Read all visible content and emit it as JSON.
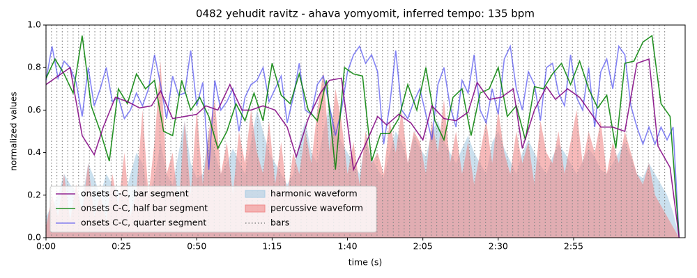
{
  "chart_data": {
    "type": "line",
    "title": "0482 yehudit ravitz - ahava yomyomit, inferred tempo: 135 bpm",
    "xlabel": "time (s)",
    "ylabel": "normalized values",
    "xlim": [
      0,
      212
    ],
    "ylim": [
      0,
      1
    ],
    "xticks": [
      {
        "value": 0,
        "label": "0:00"
      },
      {
        "value": 25,
        "label": "0:25"
      },
      {
        "value": 50,
        "label": "0:50"
      },
      {
        "value": 75,
        "label": "1:15"
      },
      {
        "value": 100,
        "label": "1:40"
      },
      {
        "value": 125,
        "label": "2:05"
      },
      {
        "value": 150,
        "label": "2:30"
      },
      {
        "value": 175,
        "label": "2:55"
      }
    ],
    "yticks": [
      {
        "value": 0,
        "label": "0.0"
      },
      0.2,
      0.4,
      0.6,
      0.8,
      {
        "value": 1,
        "label": "1.0"
      }
    ],
    "legend": "lower left",
    "x": [
      0,
      2,
      4,
      6,
      8,
      10,
      12,
      14,
      16,
      18,
      20,
      22,
      24,
      26,
      28,
      30,
      32,
      34,
      36,
      38,
      40,
      42,
      44,
      46,
      48,
      50,
      52,
      54,
      56,
      58,
      60,
      62,
      64,
      66,
      68,
      70,
      72,
      74,
      76,
      78,
      80,
      82,
      84,
      86,
      88,
      90,
      92,
      94,
      96,
      98,
      100,
      102,
      104,
      106,
      108,
      110,
      112,
      114,
      116,
      118,
      120,
      122,
      124,
      126,
      128,
      130,
      132,
      134,
      136,
      138,
      140,
      142,
      144,
      146,
      148,
      150,
      152,
      154,
      156,
      158,
      160,
      162,
      164,
      166,
      168,
      170,
      172,
      174,
      176,
      178,
      180,
      182,
      184,
      186,
      188,
      190,
      192,
      194,
      196,
      198,
      200,
      202,
      204,
      206,
      208,
      210
    ],
    "series": [
      {
        "name": "onsets C-C, bar segment",
        "type": "line",
        "color": "#800080",
        "x": [
          0,
          8,
          12,
          16,
          19,
          23,
          27,
          31,
          35,
          38,
          42,
          46,
          50,
          53,
          57,
          61,
          65,
          68,
          72,
          76,
          80,
          83,
          87,
          91,
          94,
          98,
          102,
          106,
          110,
          113,
          117,
          121,
          125,
          128,
          132,
          136,
          140,
          143,
          147,
          151,
          155,
          158,
          162,
          166,
          169,
          173,
          177,
          181,
          184,
          188,
          192,
          196,
          200,
          203,
          207,
          210
        ],
        "values": [
          0.72,
          0.8,
          0.48,
          0.39,
          0.52,
          0.66,
          0.64,
          0.61,
          0.62,
          0.69,
          0.56,
          0.57,
          0.58,
          0.62,
          0.6,
          0.72,
          0.6,
          0.6,
          0.62,
          0.6,
          0.52,
          0.38,
          0.56,
          0.68,
          0.74,
          0.75,
          0.32,
          0.44,
          0.57,
          0.53,
          0.58,
          0.54,
          0.46,
          0.62,
          0.56,
          0.55,
          0.59,
          0.73,
          0.65,
          0.66,
          0.7,
          0.42,
          0.6,
          0.71,
          0.65,
          0.7,
          0.66,
          0.58,
          0.52,
          0.52,
          0.5,
          0.82,
          0.84,
          0.43,
          0.33,
          0.0
        ]
      },
      {
        "name": "onsets C-C, half bar segment",
        "type": "line",
        "color": "#008000",
        "x": [
          0,
          3,
          6,
          9,
          12,
          15,
          18,
          21,
          24,
          27,
          30,
          33,
          36,
          39,
          42,
          45,
          48,
          51,
          54,
          57,
          60,
          63,
          66,
          69,
          72,
          75,
          78,
          81,
          84,
          87,
          90,
          93,
          96,
          99,
          102,
          105,
          108,
          111,
          114,
          117,
          120,
          123,
          126,
          129,
          132,
          135,
          138,
          141,
          144,
          147,
          150,
          153,
          156,
          159,
          162,
          165,
          168,
          171,
          174,
          177,
          180,
          183,
          186,
          189,
          192,
          195,
          198,
          201,
          204,
          207,
          210
        ],
        "values": [
          0.75,
          0.84,
          0.77,
          0.68,
          0.95,
          0.62,
          0.5,
          0.36,
          0.7,
          0.63,
          0.77,
          0.7,
          0.74,
          0.5,
          0.48,
          0.74,
          0.6,
          0.66,
          0.57,
          0.42,
          0.5,
          0.63,
          0.55,
          0.68,
          0.55,
          0.82,
          0.67,
          0.63,
          0.77,
          0.6,
          0.55,
          0.74,
          0.32,
          0.8,
          0.77,
          0.76,
          0.36,
          0.49,
          0.49,
          0.56,
          0.72,
          0.6,
          0.8,
          0.55,
          0.46,
          0.66,
          0.7,
          0.48,
          0.68,
          0.7,
          0.8,
          0.57,
          0.62,
          0.46,
          0.71,
          0.7,
          0.77,
          0.82,
          0.72,
          0.83,
          0.7,
          0.61,
          0.67,
          0.42,
          0.82,
          0.83,
          0.92,
          0.95,
          0.63,
          0.57,
          0.0
        ]
      },
      {
        "name": "onsets C-C, quarter segment",
        "type": "line",
        "color": "#3333ee",
        "values": [
          0.74,
          0.9,
          0.75,
          0.83,
          0.8,
          0.73,
          0.57,
          0.8,
          0.62,
          0.7,
          0.8,
          0.64,
          0.66,
          0.56,
          0.6,
          0.68,
          0.62,
          0.7,
          0.86,
          0.72,
          0.56,
          0.76,
          0.67,
          0.68,
          0.88,
          0.62,
          0.73,
          0.32,
          0.74,
          0.6,
          0.64,
          0.7,
          0.5,
          0.66,
          0.72,
          0.74,
          0.8,
          0.64,
          0.7,
          0.76,
          0.54,
          0.66,
          0.82,
          0.6,
          0.58,
          0.72,
          0.76,
          0.62,
          0.48,
          0.6,
          0.78,
          0.86,
          0.9,
          0.82,
          0.86,
          0.78,
          0.44,
          0.62,
          0.88,
          0.6,
          0.56,
          0.64,
          0.7,
          0.58,
          0.46,
          0.72,
          0.8,
          0.62,
          0.52,
          0.74,
          0.68,
          0.86,
          0.6,
          0.54,
          0.7,
          0.58,
          0.84,
          0.9,
          0.7,
          0.6,
          0.78,
          0.72,
          0.55,
          0.8,
          0.82,
          0.68,
          0.62,
          0.86,
          0.66,
          0.6,
          0.8,
          0.52,
          0.78,
          0.84,
          0.7,
          0.9,
          0.86,
          0.62,
          0.52,
          0.44,
          0.52,
          0.44,
          0.52,
          0.46,
          0.52,
          0.0
        ]
      },
      {
        "name": "harmonic waveform",
        "type": "area",
        "color": "#a9cce3",
        "values": [
          0.1,
          0.15,
          0.2,
          0.3,
          0.25,
          0.22,
          0.18,
          0.35,
          0.28,
          0.2,
          0.3,
          0.25,
          0.22,
          0.18,
          0.3,
          0.4,
          0.35,
          0.2,
          0.28,
          0.45,
          0.3,
          0.25,
          0.4,
          0.55,
          0.35,
          0.28,
          0.3,
          0.5,
          0.4,
          0.3,
          0.35,
          0.42,
          0.36,
          0.3,
          0.45,
          0.6,
          0.5,
          0.4,
          0.35,
          0.3,
          0.25,
          0.3,
          0.45,
          0.55,
          0.4,
          0.35,
          0.5,
          0.62,
          0.52,
          0.45,
          0.4,
          0.35,
          0.3,
          0.45,
          0.38,
          0.32,
          0.28,
          0.4,
          0.5,
          0.45,
          0.35,
          0.48,
          0.42,
          0.38,
          0.5,
          0.55,
          0.45,
          0.4,
          0.35,
          0.42,
          0.48,
          0.4,
          0.35,
          0.3,
          0.45,
          0.5,
          0.42,
          0.36,
          0.3,
          0.4,
          0.46,
          0.4,
          0.34,
          0.3,
          0.38,
          0.44,
          0.4,
          0.35,
          0.3,
          0.36,
          0.42,
          0.38,
          0.32,
          0.3,
          0.35,
          0.4,
          0.45,
          0.38,
          0.3,
          0.28,
          0.35,
          0.3,
          0.25,
          0.2,
          0.12,
          0.0
        ]
      },
      {
        "name": "percussive waveform",
        "type": "area",
        "color": "#f08a8a",
        "values": [
          0.05,
          0.2,
          0.1,
          0.3,
          0.08,
          0.25,
          0.12,
          0.35,
          0.1,
          0.2,
          0.08,
          0.3,
          0.15,
          0.4,
          0.1,
          0.22,
          0.6,
          0.2,
          0.45,
          0.83,
          0.3,
          0.4,
          0.15,
          0.55,
          0.2,
          0.6,
          0.25,
          0.5,
          0.65,
          0.3,
          0.45,
          0.2,
          0.5,
          0.35,
          0.6,
          0.4,
          0.3,
          0.55,
          0.25,
          0.45,
          0.2,
          0.4,
          0.3,
          0.5,
          0.35,
          0.6,
          0.78,
          0.4,
          0.7,
          0.55,
          0.3,
          0.45,
          0.25,
          0.5,
          0.35,
          0.4,
          0.3,
          0.55,
          0.4,
          0.6,
          0.35,
          0.5,
          0.45,
          0.3,
          0.55,
          0.4,
          0.65,
          0.35,
          0.5,
          0.3,
          0.45,
          0.25,
          0.4,
          0.55,
          0.35,
          0.6,
          0.4,
          0.3,
          0.5,
          0.35,
          0.45,
          0.25,
          0.55,
          0.4,
          0.35,
          0.5,
          0.3,
          0.45,
          0.6,
          0.35,
          0.5,
          0.4,
          0.55,
          0.3,
          0.45,
          0.35,
          0.5,
          0.4,
          0.3,
          0.25,
          0.35,
          0.2,
          0.15,
          0.1,
          0.05,
          0.0
        ]
      },
      {
        "name": "bars",
        "type": "vline",
        "color": "#888888",
        "x": [
          0,
          1.8,
          3.6,
          5.4,
          7.2,
          9,
          10.8,
          12.6,
          14.4,
          16.2,
          18,
          19.8,
          21.6,
          23.4,
          25.2,
          27,
          28.8,
          30.6,
          32.4,
          34.2,
          36,
          37.8,
          39.6,
          41.4,
          43.2,
          45,
          46.8,
          48.6,
          50.4,
          52.2,
          54,
          55.8,
          57.6,
          59.4,
          61.2,
          63,
          64.8,
          66.6,
          68.4,
          70.2,
          72,
          73.8,
          75.6,
          77.4,
          79.2,
          81,
          82.8,
          84.6,
          86.4,
          88.2,
          90,
          91.8,
          93.6,
          95.4,
          97.2,
          99,
          100.8,
          102.6,
          104.4,
          106.2,
          108,
          109.8,
          111.6,
          113.4,
          115.2,
          117,
          118.8,
          120.6,
          122.4,
          124.2,
          126,
          127.8,
          129.6,
          131.4,
          133.2,
          135,
          136.8,
          138.6,
          140.4,
          142.2,
          144,
          145.8,
          147.6,
          149.4,
          151.2,
          153,
          154.8,
          156.6,
          158.4,
          160.2,
          162,
          163.8,
          165.6,
          167.4,
          169.2,
          171,
          172.8,
          174.6,
          176.4,
          178.2,
          180,
          181.8,
          183.6,
          185.4,
          187.2,
          189,
          190.8,
          192.6,
          194.4,
          196.2,
          198,
          199.8,
          201.6,
          203.4,
          205.2
        ]
      }
    ]
  }
}
